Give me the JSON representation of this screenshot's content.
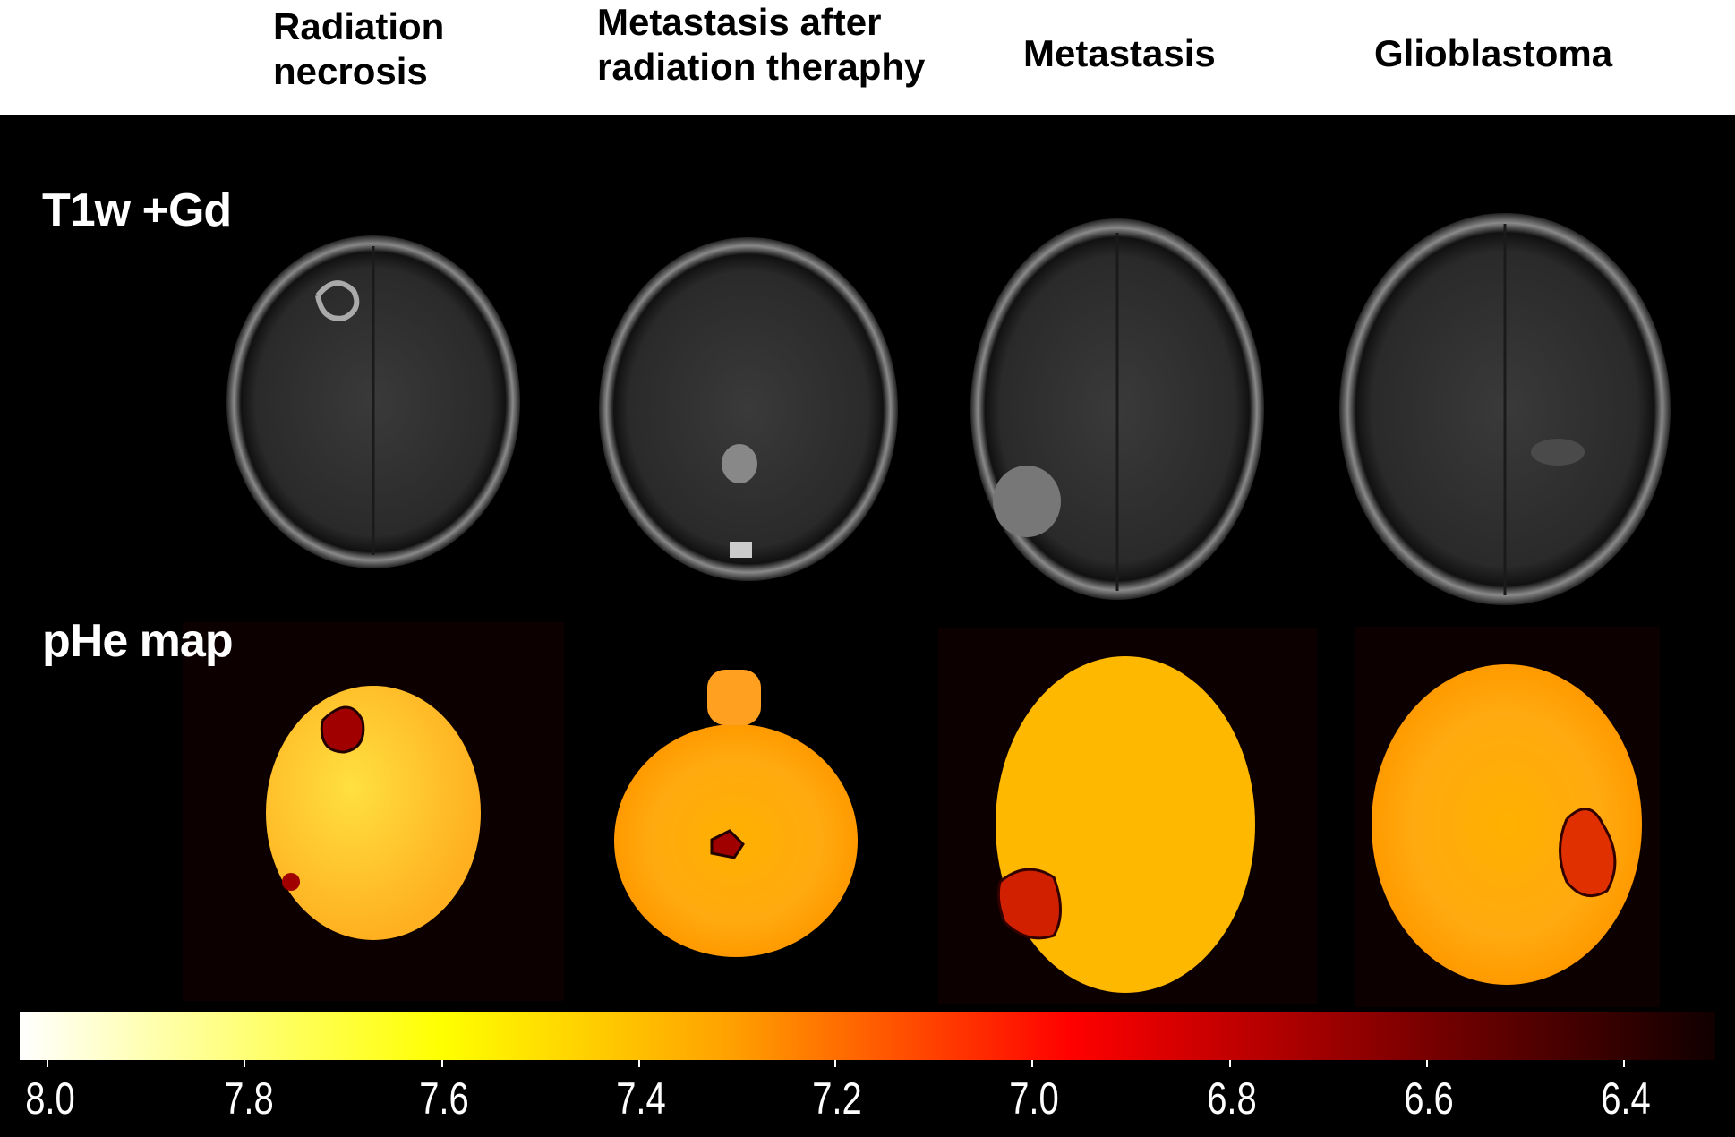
{
  "columns": [
    "Radiation necrosis",
    "Metastasis after radiation theraphy",
    "Metastasis",
    "Glioblastoma"
  ],
  "columns_lines": [
    [
      "Radiation",
      "necrosis"
    ],
    [
      "Metastasis after",
      "radiation theraphy"
    ],
    [
      "Metastasis"
    ],
    [
      "Glioblastoma"
    ]
  ],
  "rows": {
    "t1": "T1w +Gd",
    "phe": "pHe map"
  },
  "colorbar": {
    "ticks": [
      "8.0",
      "7.8",
      "7.6",
      "7.4",
      "7.2",
      "7.0",
      "6.8",
      "6.6",
      "6.4"
    ],
    "range": [
      8.0,
      6.3
    ],
    "colors": [
      "#ffffff",
      "#ffff00",
      "#ff8c00",
      "#ff0000",
      "#8b0000",
      "#100000"
    ]
  }
}
